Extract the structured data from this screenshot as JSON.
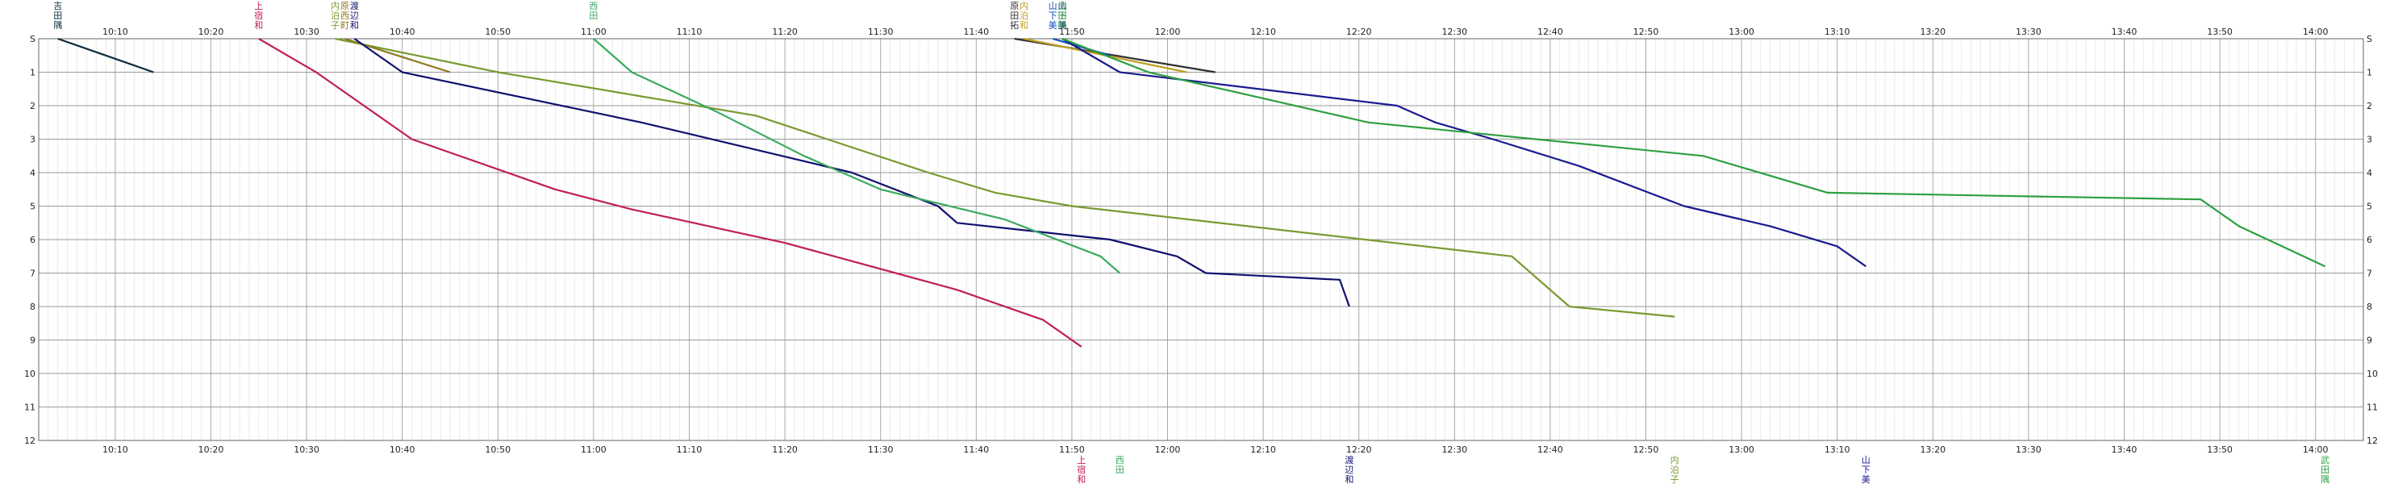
{
  "chart_data": {
    "type": "line",
    "x_ticks": [
      "10:10",
      "10:20",
      "10:30",
      "10:40",
      "10:50",
      "11:00",
      "11:10",
      "11:20",
      "11:30",
      "11:40",
      "11:50",
      "12:00",
      "12:10",
      "12:20",
      "12:30",
      "12:40",
      "12:50",
      "13:00",
      "13:10",
      "13:20",
      "13:30",
      "13:40",
      "13:50",
      "14:00"
    ],
    "y_ticks": [
      "S",
      "1",
      "2",
      "3",
      "4",
      "5",
      "6",
      "7",
      "8",
      "9",
      "10",
      "11",
      "12"
    ],
    "xlim": [
      "10:02",
      "14:05"
    ],
    "ylim": [
      "S",
      "12"
    ],
    "grid": true,
    "series": [
      {
        "color": "#0a2a3c",
        "top_label": "吉田隅",
        "bottom_label": "",
        "points": [
          [
            "10:04",
            0
          ],
          [
            "10:14",
            1
          ]
        ]
      },
      {
        "color": "#c02050",
        "top_label": "上宿和",
        "bottom_label": "上宿和",
        "points": [
          [
            "10:25",
            0
          ],
          [
            "10:31",
            1
          ],
          [
            "10:41",
            3
          ],
          [
            "10:56",
            4.5
          ],
          [
            "11:04",
            5.1
          ],
          [
            "11:20",
            6.1
          ],
          [
            "11:38",
            7.5
          ],
          [
            "11:47",
            8.4
          ],
          [
            "11:51",
            9.2
          ]
        ]
      },
      {
        "color": "#7a9a30",
        "top_label": "内泊子",
        "bottom_label": "内泊子",
        "points": [
          [
            "10:33",
            0
          ],
          [
            "10:50",
            1
          ],
          [
            "11:17",
            2.3
          ],
          [
            "11:35",
            4.0
          ],
          [
            "11:42",
            4.6
          ],
          [
            "11:50",
            5.0
          ],
          [
            "12:36",
            6.5
          ],
          [
            "12:42",
            8.0
          ],
          [
            "12:53",
            8.3
          ]
        ]
      },
      {
        "color": "#8a7a20",
        "top_label": "原西町",
        "bottom_label": "",
        "points": [
          [
            "10:34",
            0
          ],
          [
            "10:45",
            1
          ]
        ]
      },
      {
        "color": "#101070",
        "top_label": "渡辺和",
        "bottom_label": "渡辺和",
        "points": [
          [
            "10:35",
            0
          ],
          [
            "10:40",
            1
          ],
          [
            "11:05",
            2.5
          ],
          [
            "11:27",
            4
          ],
          [
            "11:36",
            5
          ],
          [
            "11:38",
            5.5
          ],
          [
            "11:54",
            6.0
          ],
          [
            "12:01",
            6.5
          ],
          [
            "12:04",
            7
          ],
          [
            "12:18",
            7.2
          ],
          [
            "12:19",
            8
          ]
        ]
      },
      {
        "color": "#3aaa60",
        "top_label": "西田",
        "bottom_label": "西田",
        "points": [
          [
            "11:00",
            0
          ],
          [
            "11:04",
            1
          ],
          [
            "11:13",
            2.2
          ],
          [
            "11:22",
            3.5
          ],
          [
            "11:30",
            4.5
          ],
          [
            "11:43",
            5.4
          ],
          [
            "11:53",
            6.5
          ],
          [
            "11:55",
            7.0
          ]
        ]
      },
      {
        "color": "#303030",
        "top_label": "原田拓",
        "bottom_label": "",
        "points": [
          [
            "11:44",
            0
          ],
          [
            "12:05",
            1
          ]
        ]
      },
      {
        "color": "#c0a020",
        "top_label": "内泊和",
        "bottom_label": "",
        "points": [
          [
            "11:45",
            0
          ],
          [
            "12:02",
            1
          ]
        ]
      },
      {
        "color": "#1050c0",
        "top_label": "山下美",
        "bottom_label": "",
        "points": [
          [
            "11:48",
            0
          ],
          [
            "11:54",
            0.5
          ]
        ]
      },
      {
        "color": "#1a1a90",
        "top_label": "山下美",
        "bottom_label": "山下美",
        "points": [
          [
            "11:49",
            0
          ],
          [
            "11:55",
            1
          ],
          [
            "12:24",
            2
          ],
          [
            "12:28",
            2.5
          ],
          [
            "12:34",
            3.0
          ],
          [
            "12:43",
            3.8
          ],
          [
            "12:54",
            5.0
          ],
          [
            "13:03",
            5.6
          ],
          [
            "13:10",
            6.2
          ],
          [
            "13:13",
            6.8
          ]
        ]
      },
      {
        "color": "#2ea040",
        "top_label": "武田隅",
        "bottom_label": "武田隅",
        "points": [
          [
            "11:49",
            0
          ],
          [
            "11:58",
            1
          ],
          [
            "12:21",
            2.5
          ],
          [
            "12:56",
            3.5
          ],
          [
            "13:09",
            4.6
          ],
          [
            "13:48",
            4.8
          ],
          [
            "13:52",
            5.6
          ],
          [
            "14:01",
            6.8
          ]
        ]
      }
    ]
  }
}
